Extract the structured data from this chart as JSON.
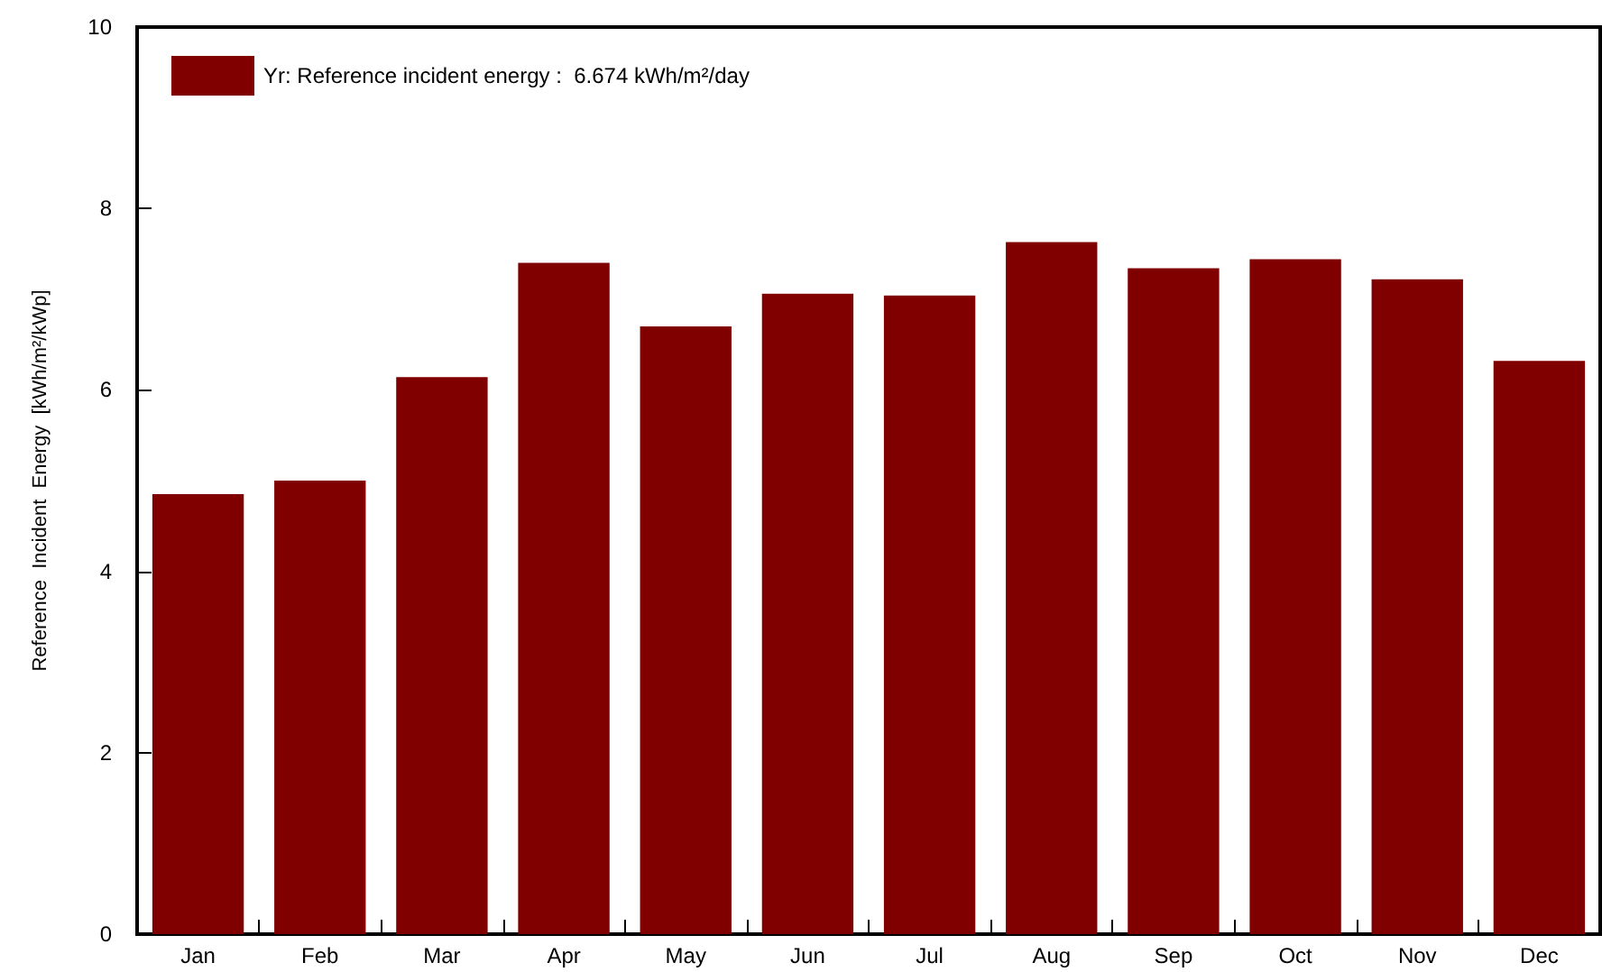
{
  "chart_data": {
    "type": "bar",
    "ylabel": "Reference  Incident  Energy  [kWh/m²/kWp]",
    "categories": [
      "Jan",
      "Feb",
      "Mar",
      "Apr",
      "May",
      "Jun",
      "Jul",
      "Aug",
      "Sep",
      "Oct",
      "Nov",
      "Dec"
    ],
    "series": [
      {
        "name": "Yr: Reference incident energy :  6.674 kWh/m²/day",
        "color": "#800000",
        "values": [
          4.85,
          5.0,
          6.14,
          7.4,
          6.7,
          7.06,
          7.04,
          7.63,
          7.34,
          7.44,
          7.22,
          6.32
        ]
      }
    ],
    "ylim": [
      0,
      10
    ],
    "yticks": [
      0,
      2,
      4,
      6,
      8,
      10
    ],
    "grid": false,
    "legend": "top left"
  }
}
